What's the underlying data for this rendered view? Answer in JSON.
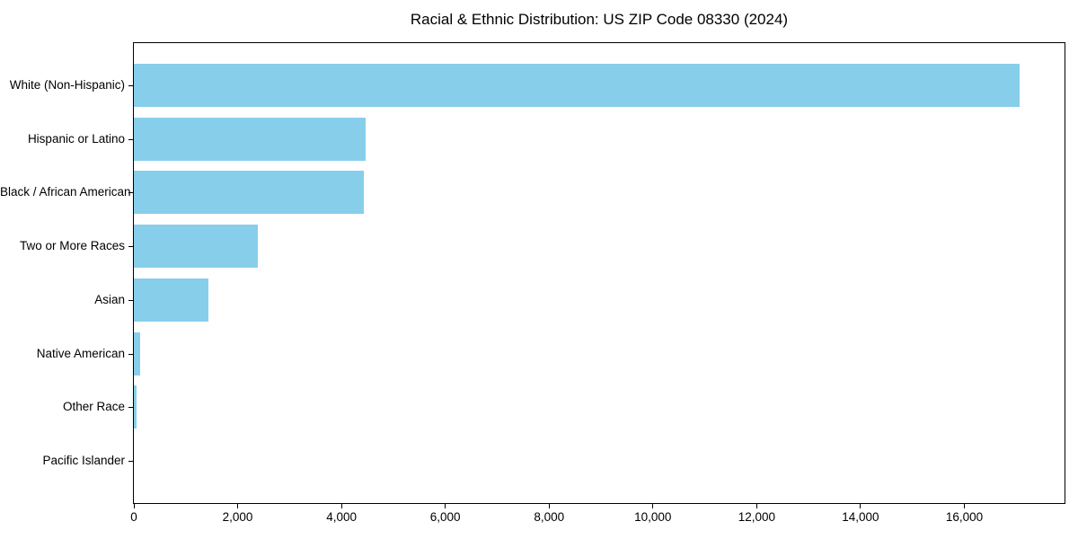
{
  "figure": {
    "background": "#ffffff",
    "text_color": "#000000",
    "axis_color": "#000000"
  },
  "chart_data": {
    "type": "bar",
    "orientation": "horizontal",
    "title": "Racial & Ethnic Distribution: US ZIP Code 08330 (2024)",
    "categories": [
      "White (Non-Hispanic)",
      "Hispanic or Latino",
      "Black / African American",
      "Two or More Races",
      "Asian",
      "Native American",
      "Other Race",
      "Pacific Islander"
    ],
    "values": [
      17060,
      4465,
      4435,
      2380,
      1445,
      120,
      45,
      0
    ],
    "bar_color": "#87CEEB",
    "xlabel": "",
    "ylabel": "",
    "xlim": [
      0,
      17930
    ],
    "xticks": [
      0,
      2000,
      4000,
      6000,
      8000,
      10000,
      12000,
      14000,
      16000
    ],
    "xtick_labels": [
      "0",
      "2,000",
      "4,000",
      "6,000",
      "8,000",
      "10,000",
      "12,000",
      "14,000",
      "16,000"
    ],
    "grid": false,
    "legend": null
  }
}
